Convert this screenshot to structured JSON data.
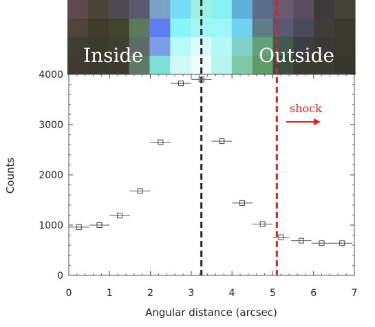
{
  "chart_data": {
    "type": "scatter",
    "xlabel": "Angular distance (arcsec)",
    "ylabel": "Counts",
    "xlim": [
      0,
      7
    ],
    "ylim": [
      0,
      4000
    ],
    "x_ticks": [
      "0",
      "1",
      "2",
      "3",
      "4",
      "5",
      "6",
      "7"
    ],
    "y_ticks": [
      "0",
      "1000",
      "2000",
      "3000",
      "4000"
    ],
    "grid": false,
    "points": [
      {
        "x": 0.25,
        "y": 960,
        "xerr": 0.25
      },
      {
        "x": 0.75,
        "y": 1000,
        "xerr": 0.25
      },
      {
        "x": 1.25,
        "y": 1190,
        "xerr": 0.25
      },
      {
        "x": 1.75,
        "y": 1680,
        "xerr": 0.25
      },
      {
        "x": 2.25,
        "y": 2650,
        "xerr": 0.25
      },
      {
        "x": 2.75,
        "y": 3820,
        "xerr": 0.25
      },
      {
        "x": 3.25,
        "y": 3900,
        "xerr": 0.25
      },
      {
        "x": 3.75,
        "y": 2670,
        "xerr": 0.25
      },
      {
        "x": 4.25,
        "y": 1440,
        "xerr": 0.25
      },
      {
        "x": 4.75,
        "y": 1020,
        "xerr": 0.25
      },
      {
        "x": 5.2,
        "y": 760,
        "xerr": 0.2
      },
      {
        "x": 5.7,
        "y": 690,
        "xerr": 0.25
      },
      {
        "x": 6.2,
        "y": 640,
        "xerr": 0.25
      },
      {
        "x": 6.7,
        "y": 640,
        "xerr": 0.25
      }
    ],
    "vlines": [
      {
        "x": 3.25,
        "color": "#222222",
        "style": "dashed"
      },
      {
        "x": 5.1,
        "color": "#e0201c",
        "style": "dashed"
      }
    ],
    "annotations": {
      "inside": "Inside",
      "outside": "Outside",
      "shock": "shock"
    },
    "shock_color": "#e0201c"
  },
  "image_strip": {
    "rows": [
      [
        "#5e4a4e",
        "#4a4436",
        "#4e4a52",
        "#5a5a6e",
        "#7aa2c6",
        "#76dcf6",
        "#9ef0e2",
        "#86f2f2",
        "#5eaed8",
        "#5c6e8a",
        "#6e5a6e",
        "#5a4e5e",
        "#3e3a3c",
        "#424238"
      ],
      [
        "#4e4438",
        "#403c2a",
        "#44442e",
        "#5a7a5e",
        "#5c7ef2",
        "#86f6f8",
        "#a0f6f0",
        "#9ef6f6",
        "#6ed2f0",
        "#607c86",
        "#565a72",
        "#4a4a5a",
        "#403c3a",
        "#3a3a30"
      ],
      [
        "#403e30",
        "#3c3a2a",
        "#404030",
        "#5e6a66",
        "#7a9eea",
        "#b6fafa",
        "#d8fcf8",
        "#b2f8f8",
        "#7ed2c8",
        "#62a27a",
        "#425a4e",
        "#3e3e44",
        "#3a3a34",
        "#38382e"
      ],
      [
        "#3e3a2e",
        "#3a3a2c",
        "#3c3a2c",
        "#5e7a66",
        "#7ae0d8",
        "#d0fafa",
        "#f0fcfa",
        "#b6f4ee",
        "#7ec8a6",
        "#5e9a6a",
        "#3e4e3e",
        "#3a3a32",
        "#3a3a2e",
        "#36362a"
      ]
    ]
  }
}
